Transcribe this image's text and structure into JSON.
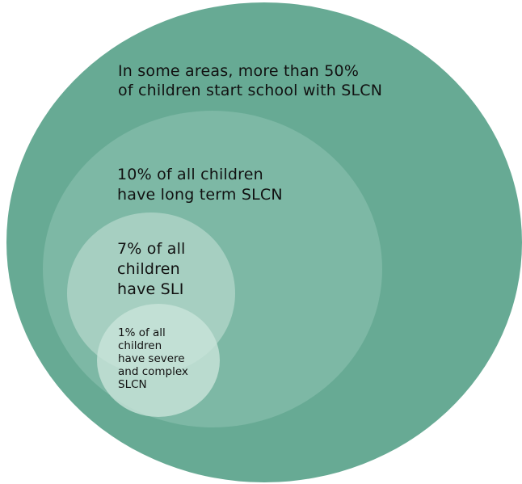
{
  "colors": {
    "outer": "#67aa94",
    "second": "#7db8a5",
    "third": "#b4d7cb",
    "inner": "#c9e3da",
    "text": "#111111"
  },
  "circles": [
    {
      "id": "outer",
      "lines": [
        "In some areas, more than 50%",
        "of children start school with SLCN"
      ]
    },
    {
      "id": "second",
      "lines": [
        "10% of all children",
        "have long term SLCN"
      ]
    },
    {
      "id": "third",
      "lines": [
        "7% of all",
        "children",
        "have SLI"
      ]
    },
    {
      "id": "inner",
      "lines": [
        "1% of all",
        "children",
        "have severe",
        "and complex",
        "SLCN"
      ]
    }
  ]
}
